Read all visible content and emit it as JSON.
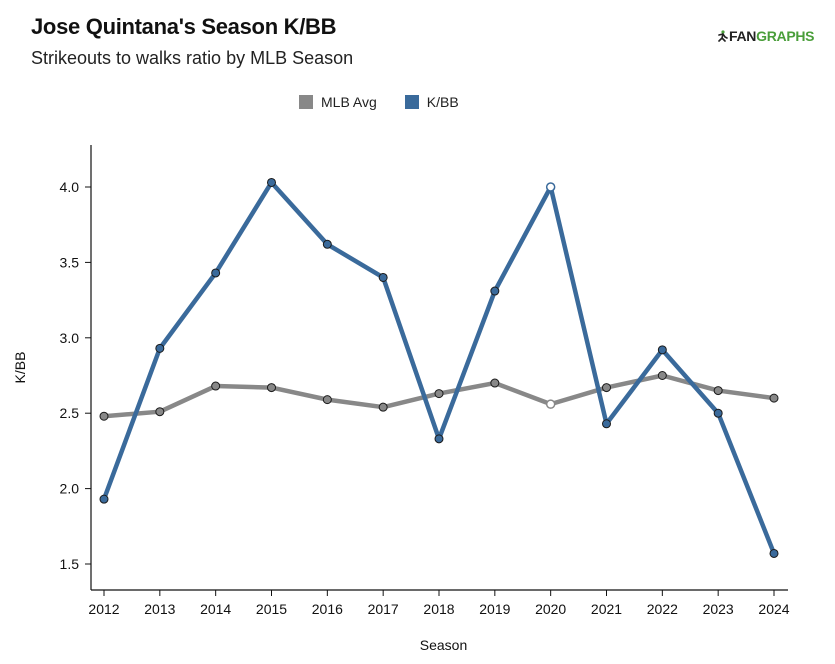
{
  "header": {
    "title": "Jose Quintana's Season K/BB",
    "subtitle": "Strikeouts to walks ratio by MLB Season",
    "logo_text_fan": "FAN",
    "logo_text_graphs": "GRAPHS"
  },
  "colors": {
    "mlb_avg": "#888888",
    "kbb": "#3a6a9b",
    "axis": "#111111"
  },
  "chart_data": {
    "type": "line",
    "title": "Jose Quintana's Season K/BB",
    "subtitle": "Strikeouts to walks ratio by MLB Season",
    "xlabel": "Season",
    "ylabel": "K/BB",
    "x": [
      2012,
      2013,
      2014,
      2015,
      2016,
      2017,
      2018,
      2019,
      2020,
      2021,
      2022,
      2023,
      2024
    ],
    "ylim": [
      1.3,
      4.3
    ],
    "yticks": [
      "1.5",
      "2.0",
      "2.5",
      "3.0",
      "3.5",
      "4.0"
    ],
    "ytick_values": [
      1.5,
      2.0,
      2.5,
      3.0,
      3.5,
      4.0
    ],
    "legend_position": "top-center",
    "grid": false,
    "series": [
      {
        "name": "MLB Avg",
        "color": "#888888",
        "values": [
          2.48,
          2.51,
          2.68,
          2.67,
          2.59,
          2.54,
          2.63,
          2.7,
          2.56,
          2.67,
          2.75,
          2.65,
          2.6
        ],
        "hollow_index": 8
      },
      {
        "name": "K/BB",
        "color": "#3a6a9b",
        "values": [
          1.93,
          2.93,
          3.43,
          4.03,
          3.62,
          3.4,
          2.33,
          3.31,
          4.0,
          2.43,
          2.92,
          2.5,
          1.57
        ],
        "hollow_index": 8
      }
    ]
  }
}
